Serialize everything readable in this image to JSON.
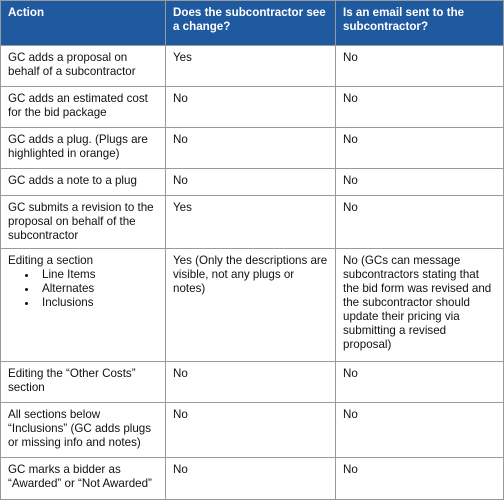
{
  "table": {
    "header": [
      "Action",
      "Does the subcontractor see a change?",
      "Is an email sent to the subcontractor?"
    ],
    "rows": [
      {
        "action": "GC adds a proposal on behalf of a subcontractor",
        "sees": "Yes",
        "email": "No"
      },
      {
        "action": "GC adds an estimated cost for the bid package",
        "sees": "No",
        "email": "No"
      },
      {
        "action": "GC adds a plug. (Plugs are highlighted in orange)",
        "sees": "No",
        "email": "No"
      },
      {
        "action": "GC adds a note to a plug",
        "sees": "No",
        "email": "No"
      },
      {
        "action": "GC submits a revision to the proposal on behalf of the subcontractor",
        "sees": "Yes",
        "email": "No"
      },
      {
        "action": "Editing a section",
        "items": [
          "Line Items",
          "Alternates",
          "Inclusions"
        ],
        "sees": "Yes (Only the descriptions are visible, not any plugs or notes)",
        "email": "No (GCs can message subcontractors stating that the bid form was revised and the subcontractor should update their pricing via submitting a revised proposal)"
      },
      {
        "action": "Editing the “Other Costs” section",
        "sees": "No",
        "email": "No"
      },
      {
        "action": "All sections below “Inclusions” (GC adds plugs or missing info and notes)",
        "sees": "No",
        "email": "No"
      },
      {
        "action": "GC marks a bidder as “Awarded” or “Not Awarded”",
        "sees": "No",
        "email": "No"
      }
    ]
  }
}
